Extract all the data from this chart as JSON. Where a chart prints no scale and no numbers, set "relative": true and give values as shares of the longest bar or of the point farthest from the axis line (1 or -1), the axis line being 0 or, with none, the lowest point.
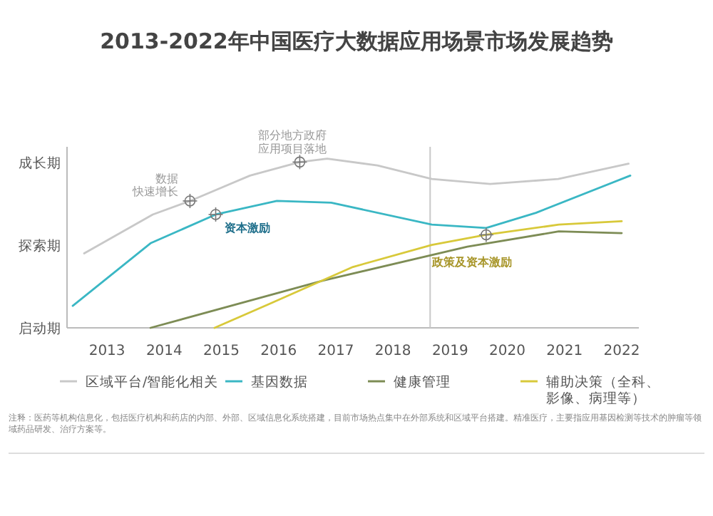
{
  "chart_data": {
    "type": "line",
    "title": "2013-2022年中国医疗大数据应用场景市场发展趋势",
    "relative": true,
    "xlim": [
      2012.3,
      2022.3
    ],
    "xticks": [
      2013,
      2014,
      2015,
      2016,
      2017,
      2018,
      2019,
      2020,
      2021,
      2022
    ],
    "series": [
      {
        "name": "区域平台/智能化相关",
        "color": "#c8c8c8",
        "x": [
          2012.6,
          2013.8,
          2014.45,
          2015.5,
          2016.37,
          2016.85,
          2017.73,
          2018.68,
          2019.7,
          2020.89,
          2022.12
        ],
        "values": [
          0.44,
          0.67,
          0.75,
          0.9,
          0.98,
          1,
          0.96,
          0.88,
          0.85,
          0.88,
          0.97
        ]
      },
      {
        "name": "基因数据",
        "color": "#3ab7c4",
        "x": [
          2012.4,
          2013.76,
          2014.9,
          2015.97,
          2016.92,
          2018.68,
          2019.63,
          2020.5,
          2022.15
        ],
        "values": [
          0.13,
          0.5,
          0.67,
          0.75,
          0.74,
          0.61,
          0.59,
          0.68,
          0.9
        ]
      },
      {
        "name": "健康管理",
        "color": "#7d8c55",
        "x": [
          2013.76,
          2016.78,
          2019.3,
          2020.9,
          2022.0
        ],
        "values": [
          0,
          0.28,
          0.48,
          0.57,
          0.56
        ]
      },
      {
        "name": "辅助决策（全科、影像、病理等）",
        "color": "#d8c93a",
        "x": [
          2014.88,
          2015.83,
          2017.3,
          2018.68,
          2019.63,
          2020.9,
          2022.0
        ],
        "values": [
          0,
          0.14,
          0.36,
          0.49,
          0.55,
          0.61,
          0.63
        ]
      }
    ],
    "ref_lines": [
      {
        "axis": "x",
        "value": 2018.65,
        "color": "#c8c8c8"
      }
    ],
    "annotations": [
      {
        "text": "部分地方政府应用项目落地",
        "x": 2016.37,
        "y": 0.98
      },
      {
        "text": "数据快速增长",
        "x": 2014.45,
        "y": 0.75
      },
      {
        "text": "资本激励",
        "x": 2014.9,
        "y": 0.67
      },
      {
        "text": "政策及资本激励",
        "x": 2019.63,
        "y": 0.55
      },
      "成长期",
      "探索期",
      "启动期",
      "注释：医药等机构信息化，包括医疗机构和药店的内部、外部、区域信息化系统搭建，目前市场热点集中在外部系统和区域平台搭建。精准医疗，主要指应用基因检测等技术的肿瘤等领域药品研发、治疗方案等。"
    ],
    "grid": false,
    "marker": "none",
    "line_style": "solid",
    "legend": "bottom"
  }
}
